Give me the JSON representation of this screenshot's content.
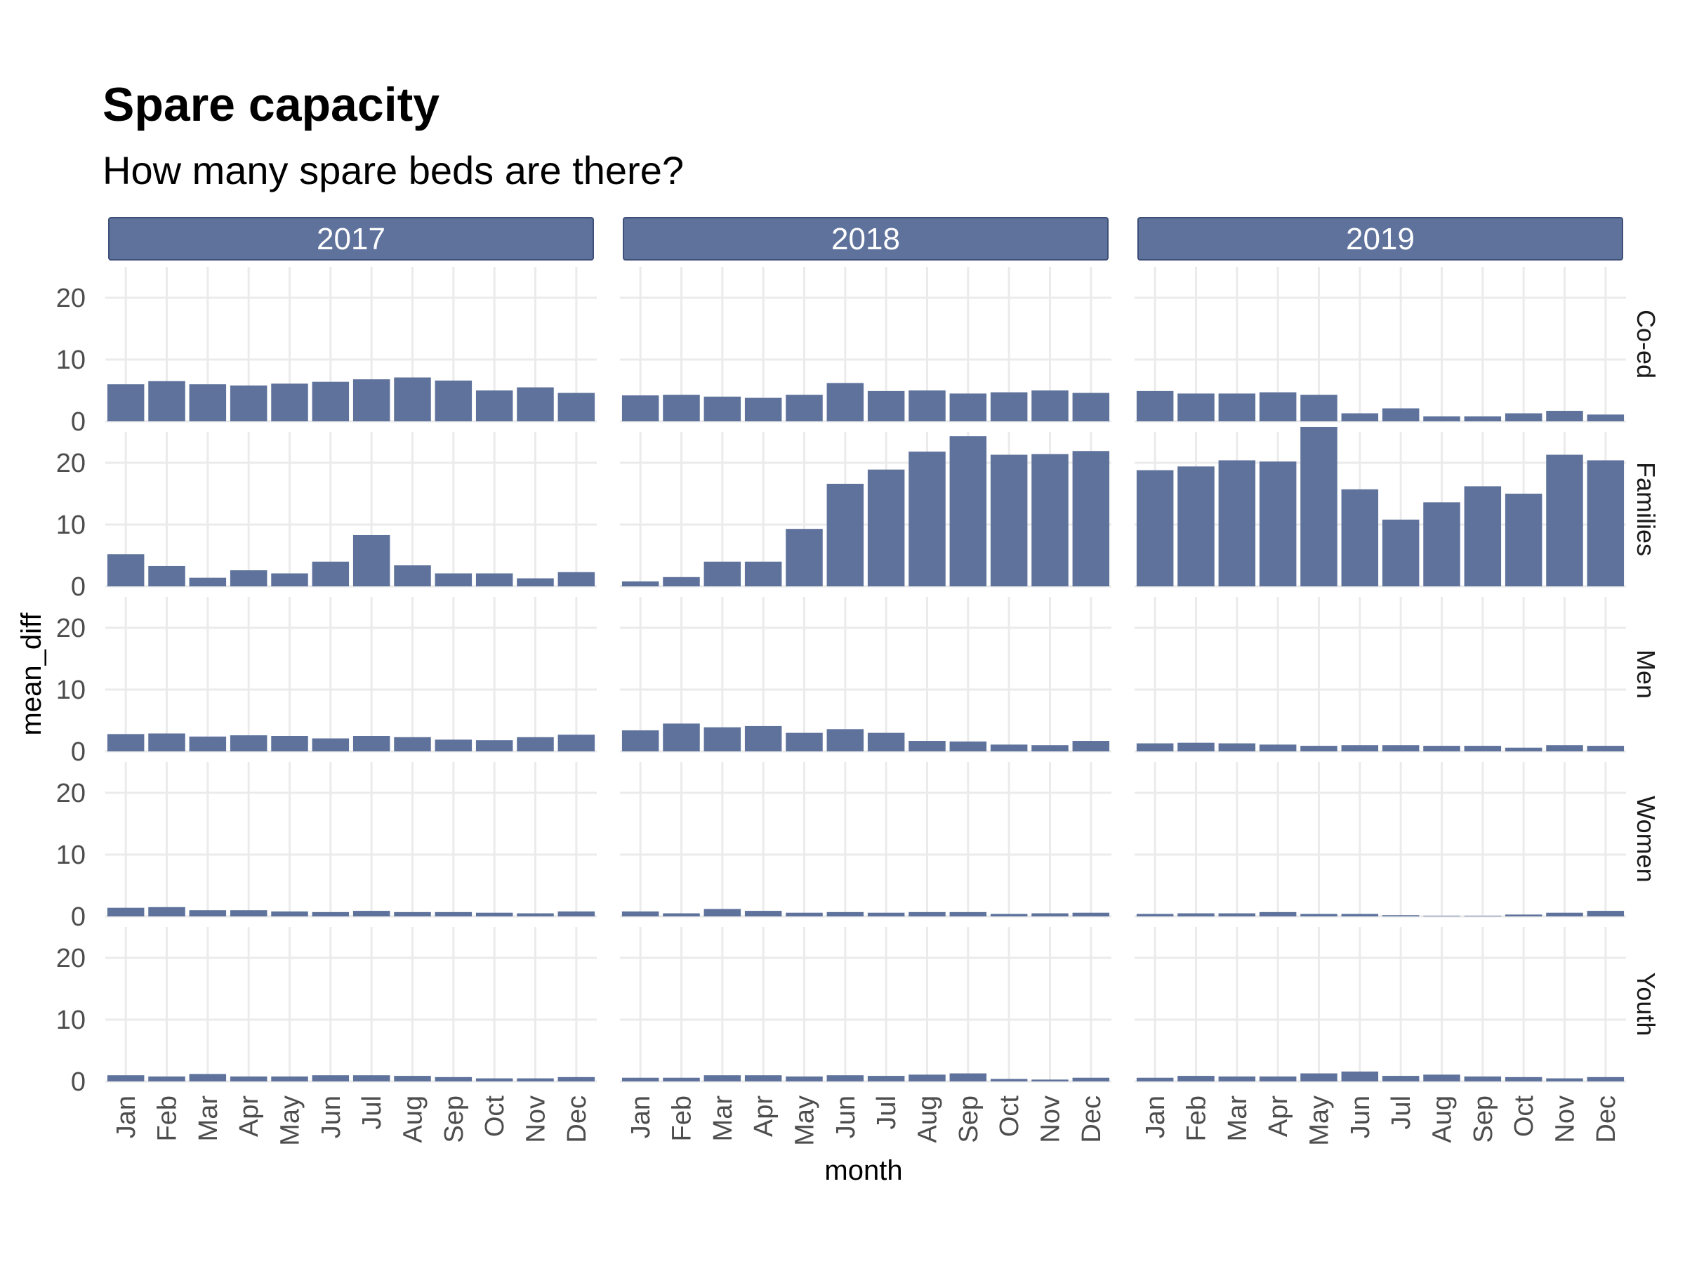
{
  "colors": {
    "bar": "#5e729c",
    "strip": "#5e729c",
    "strip_border": "#3e5078",
    "grid": "#ebebeb"
  },
  "chart_data": {
    "type": "bar",
    "title": "Spare capacity",
    "subtitle": "How many spare beds are there?",
    "xlabel": "month",
    "ylabel": "mean_diff",
    "ylim": [
      0,
      25
    ],
    "yticks": [
      0,
      10,
      20
    ],
    "grid": true,
    "legend": "none",
    "categories": [
      "Jan",
      "Feb",
      "Mar",
      "Apr",
      "May",
      "Jun",
      "Jul",
      "Aug",
      "Sep",
      "Oct",
      "Nov",
      "Dec"
    ],
    "columns": [
      "2017",
      "2018",
      "2019"
    ],
    "rows": [
      "Co-ed",
      "Families",
      "Men",
      "Women",
      "Youth"
    ],
    "panels": [
      {
        "row": "Co-ed",
        "column": "2017",
        "values": [
          6.0,
          6.5,
          6.0,
          5.8,
          6.1,
          6.4,
          6.8,
          7.1,
          6.6,
          5.0,
          5.5,
          4.6
        ]
      },
      {
        "row": "Co-ed",
        "column": "2018",
        "values": [
          4.2,
          4.3,
          4.0,
          3.8,
          4.3,
          6.2,
          4.9,
          5.0,
          4.5,
          4.7,
          5.0,
          4.6
        ]
      },
      {
        "row": "Co-ed",
        "column": "2019",
        "values": [
          4.9,
          4.5,
          4.5,
          4.7,
          4.3,
          1.3,
          2.1,
          0.8,
          0.8,
          1.3,
          1.7,
          1.1
        ]
      },
      {
        "row": "Families",
        "column": "2017",
        "values": [
          5.2,
          3.3,
          1.4,
          2.6,
          2.1,
          4.0,
          8.3,
          3.4,
          2.1,
          2.1,
          1.3,
          2.3
        ]
      },
      {
        "row": "Families",
        "column": "2018",
        "values": [
          0.8,
          1.5,
          4.0,
          4.0,
          9.3,
          16.6,
          18.9,
          21.8,
          24.3,
          21.3,
          21.4,
          21.9
        ]
      },
      {
        "row": "Families",
        "column": "2019",
        "values": [
          18.8,
          19.4,
          20.4,
          20.2,
          25.8,
          15.7,
          10.8,
          13.6,
          16.2,
          15.0,
          21.3,
          20.4
        ]
      },
      {
        "row": "Men",
        "column": "2017",
        "values": [
          2.8,
          2.9,
          2.4,
          2.6,
          2.5,
          2.1,
          2.5,
          2.3,
          1.9,
          1.8,
          2.3,
          2.7
        ]
      },
      {
        "row": "Men",
        "column": "2018",
        "values": [
          3.4,
          4.5,
          3.9,
          4.1,
          3.0,
          3.6,
          3.0,
          1.7,
          1.6,
          1.1,
          1.0,
          1.7
        ]
      },
      {
        "row": "Men",
        "column": "2019",
        "values": [
          1.3,
          1.4,
          1.3,
          1.1,
          0.9,
          1.0,
          1.0,
          0.9,
          0.9,
          0.6,
          1.0,
          0.9
        ]
      },
      {
        "row": "Women",
        "column": "2017",
        "values": [
          1.4,
          1.5,
          1.0,
          1.0,
          0.8,
          0.7,
          0.9,
          0.7,
          0.7,
          0.6,
          0.5,
          0.8
        ]
      },
      {
        "row": "Women",
        "column": "2018",
        "values": [
          0.8,
          0.5,
          1.2,
          0.9,
          0.6,
          0.7,
          0.6,
          0.7,
          0.7,
          0.4,
          0.5,
          0.6
        ]
      },
      {
        "row": "Women",
        "column": "2019",
        "values": [
          0.4,
          0.5,
          0.5,
          0.7,
          0.4,
          0.4,
          0.2,
          0.1,
          0.1,
          0.3,
          0.6,
          0.9
        ]
      },
      {
        "row": "Youth",
        "column": "2017",
        "values": [
          1.0,
          0.8,
          1.2,
          0.8,
          0.8,
          1.0,
          1.0,
          0.9,
          0.7,
          0.5,
          0.5,
          0.7
        ]
      },
      {
        "row": "Youth",
        "column": "2018",
        "values": [
          0.6,
          0.6,
          1.0,
          1.0,
          0.8,
          1.0,
          0.9,
          1.1,
          1.3,
          0.4,
          0.3,
          0.6
        ]
      },
      {
        "row": "Youth",
        "column": "2019",
        "values": [
          0.6,
          0.9,
          0.8,
          0.8,
          1.3,
          1.6,
          0.9,
          1.1,
          0.8,
          0.7,
          0.5,
          0.7
        ]
      }
    ]
  }
}
